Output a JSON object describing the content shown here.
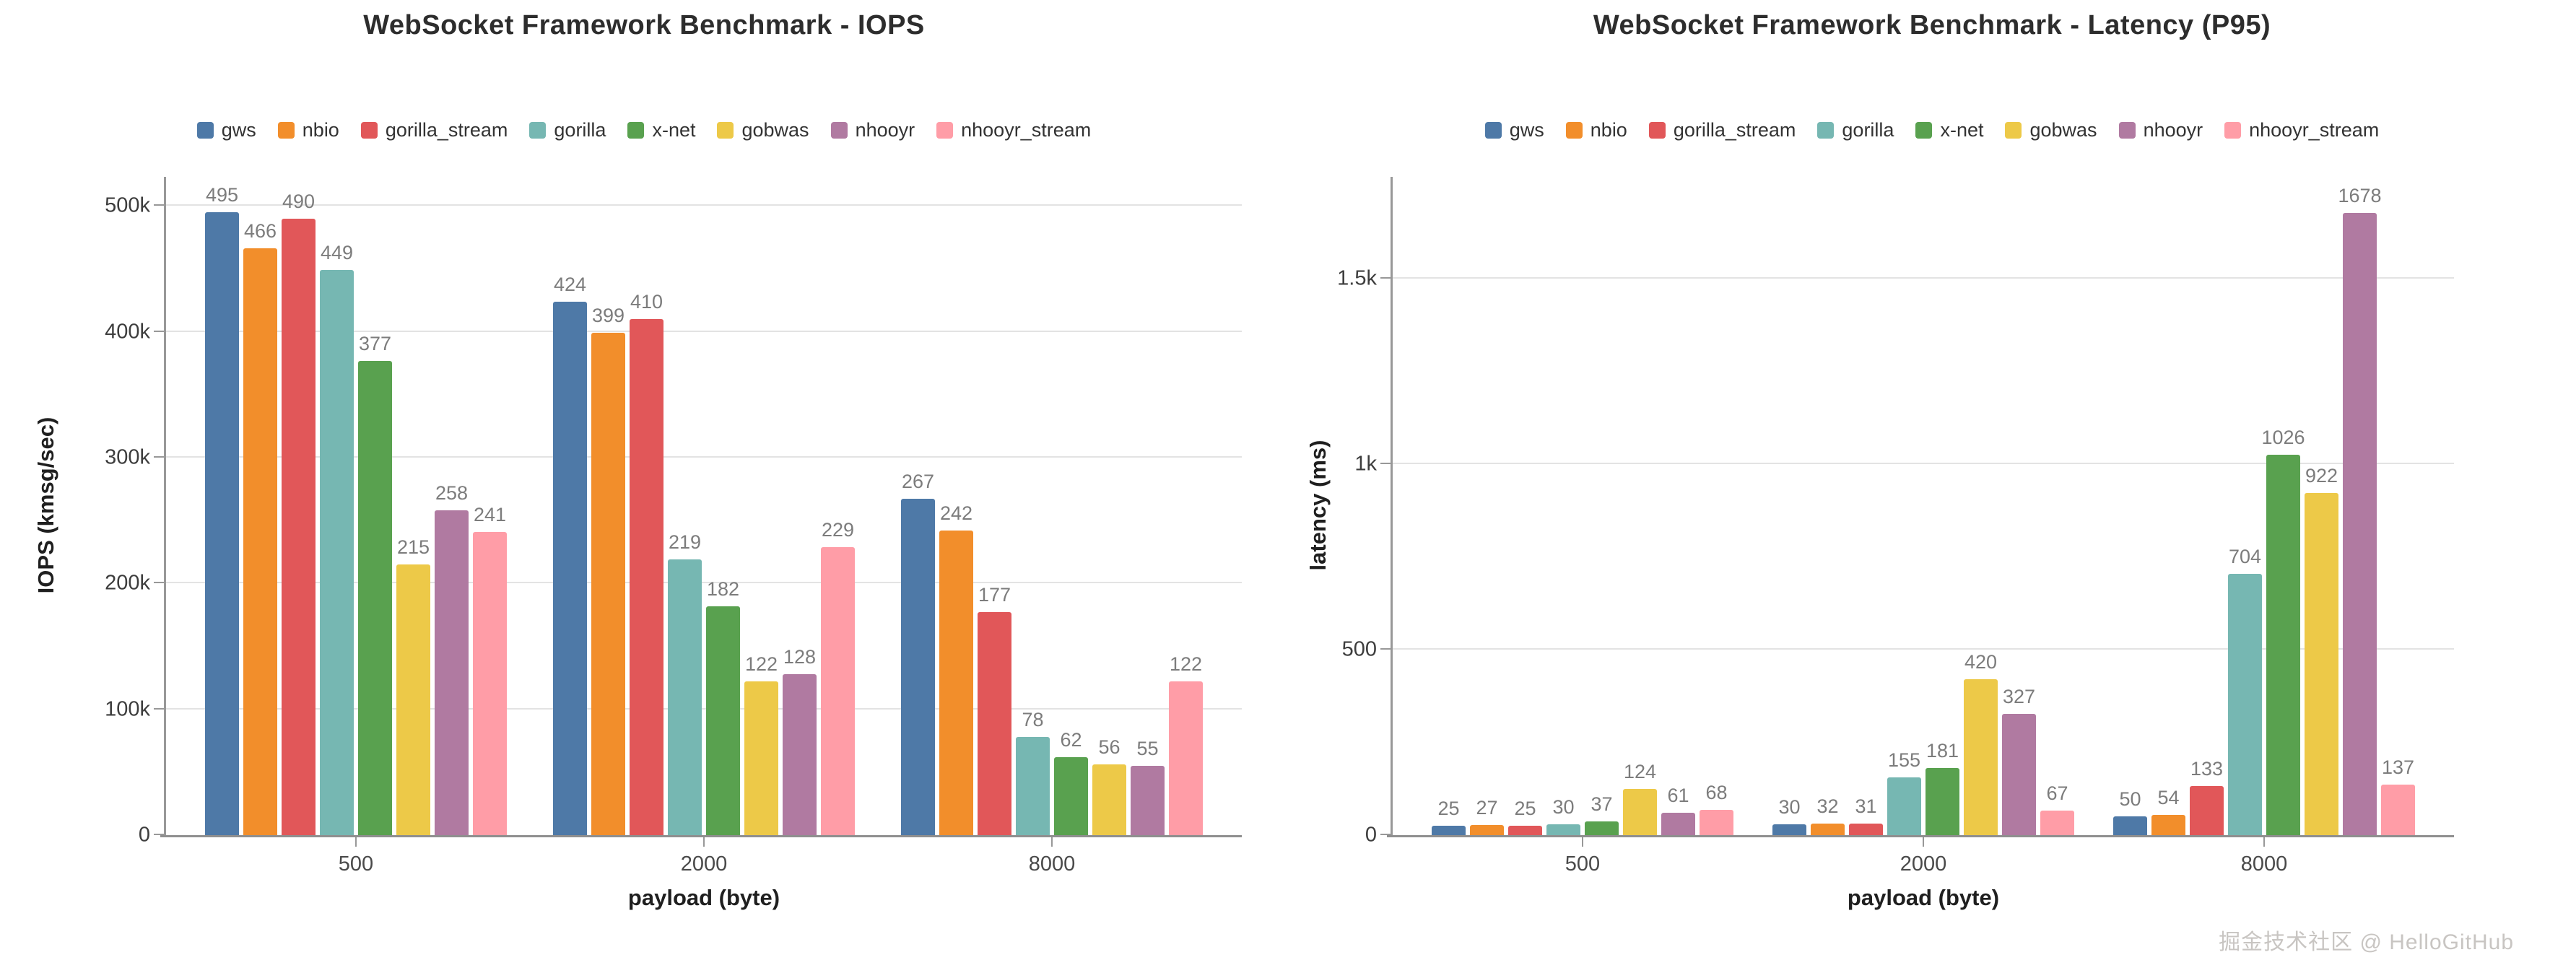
{
  "watermark": "掘金技术社区 @ HelloGitHub",
  "chart_data": [
    {
      "type": "bar",
      "title": "WebSocket Framework Benchmark - IOPS",
      "xlabel": "payload (byte)",
      "ylabel": "IOPS (kmsg/sec)",
      "categories": [
        "500",
        "2000",
        "8000"
      ],
      "series": [
        {
          "name": "gws",
          "color": "#4e79a7",
          "values": [
            495,
            424,
            267
          ]
        },
        {
          "name": "nbio",
          "color": "#f28e2b",
          "values": [
            466,
            399,
            242
          ]
        },
        {
          "name": "gorilla_stream",
          "color": "#e15759",
          "values": [
            490,
            410,
            177
          ]
        },
        {
          "name": "gorilla",
          "color": "#76b7b2",
          "values": [
            449,
            219,
            78
          ]
        },
        {
          "name": "x-net",
          "color": "#59a14f",
          "values": [
            377,
            182,
            62
          ]
        },
        {
          "name": "gobwas",
          "color": "#edc948",
          "values": [
            215,
            122,
            56
          ]
        },
        {
          "name": "nhooyr",
          "color": "#b07aa1",
          "values": [
            258,
            128,
            55
          ]
        },
        {
          "name": "nhooyr_stream",
          "color": "#ff9da7",
          "values": [
            241,
            229,
            122
          ]
        }
      ],
      "yticks": [
        {
          "v": 0,
          "label": "0"
        },
        {
          "v": 100,
          "label": "100k"
        },
        {
          "v": 200,
          "label": "200k"
        },
        {
          "v": 300,
          "label": "300k"
        },
        {
          "v": 400,
          "label": "400k"
        },
        {
          "v": 500,
          "label": "500k"
        }
      ],
      "ylim": [
        0,
        523
      ],
      "grid": true,
      "legend_position": "top"
    },
    {
      "type": "bar",
      "title": "WebSocket Framework Benchmark - Latency (P95)",
      "xlabel": "payload (byte)",
      "ylabel": "latency (ms)",
      "categories": [
        "500",
        "2000",
        "8000"
      ],
      "series": [
        {
          "name": "gws",
          "color": "#4e79a7",
          "values": [
            25,
            30,
            50
          ]
        },
        {
          "name": "nbio",
          "color": "#f28e2b",
          "values": [
            27,
            32,
            54
          ]
        },
        {
          "name": "gorilla_stream",
          "color": "#e15759",
          "values": [
            25,
            31,
            133
          ]
        },
        {
          "name": "gorilla",
          "color": "#76b7b2",
          "values": [
            30,
            155,
            704
          ]
        },
        {
          "name": "x-net",
          "color": "#59a14f",
          "values": [
            37,
            181,
            1026
          ]
        },
        {
          "name": "gobwas",
          "color": "#edc948",
          "values": [
            124,
            420,
            922
          ]
        },
        {
          "name": "nhooyr",
          "color": "#b07aa1",
          "values": [
            61,
            327,
            1678
          ]
        },
        {
          "name": "nhooyr_stream",
          "color": "#ff9da7",
          "values": [
            68,
            67,
            137
          ]
        }
      ],
      "yticks": [
        {
          "v": 0,
          "label": "0"
        },
        {
          "v": 500,
          "label": "500"
        },
        {
          "v": 1000,
          "label": "1k"
        },
        {
          "v": 1500,
          "label": "1.5k"
        }
      ],
      "ylim": [
        0,
        1775
      ],
      "grid": true,
      "legend_position": "top"
    }
  ]
}
